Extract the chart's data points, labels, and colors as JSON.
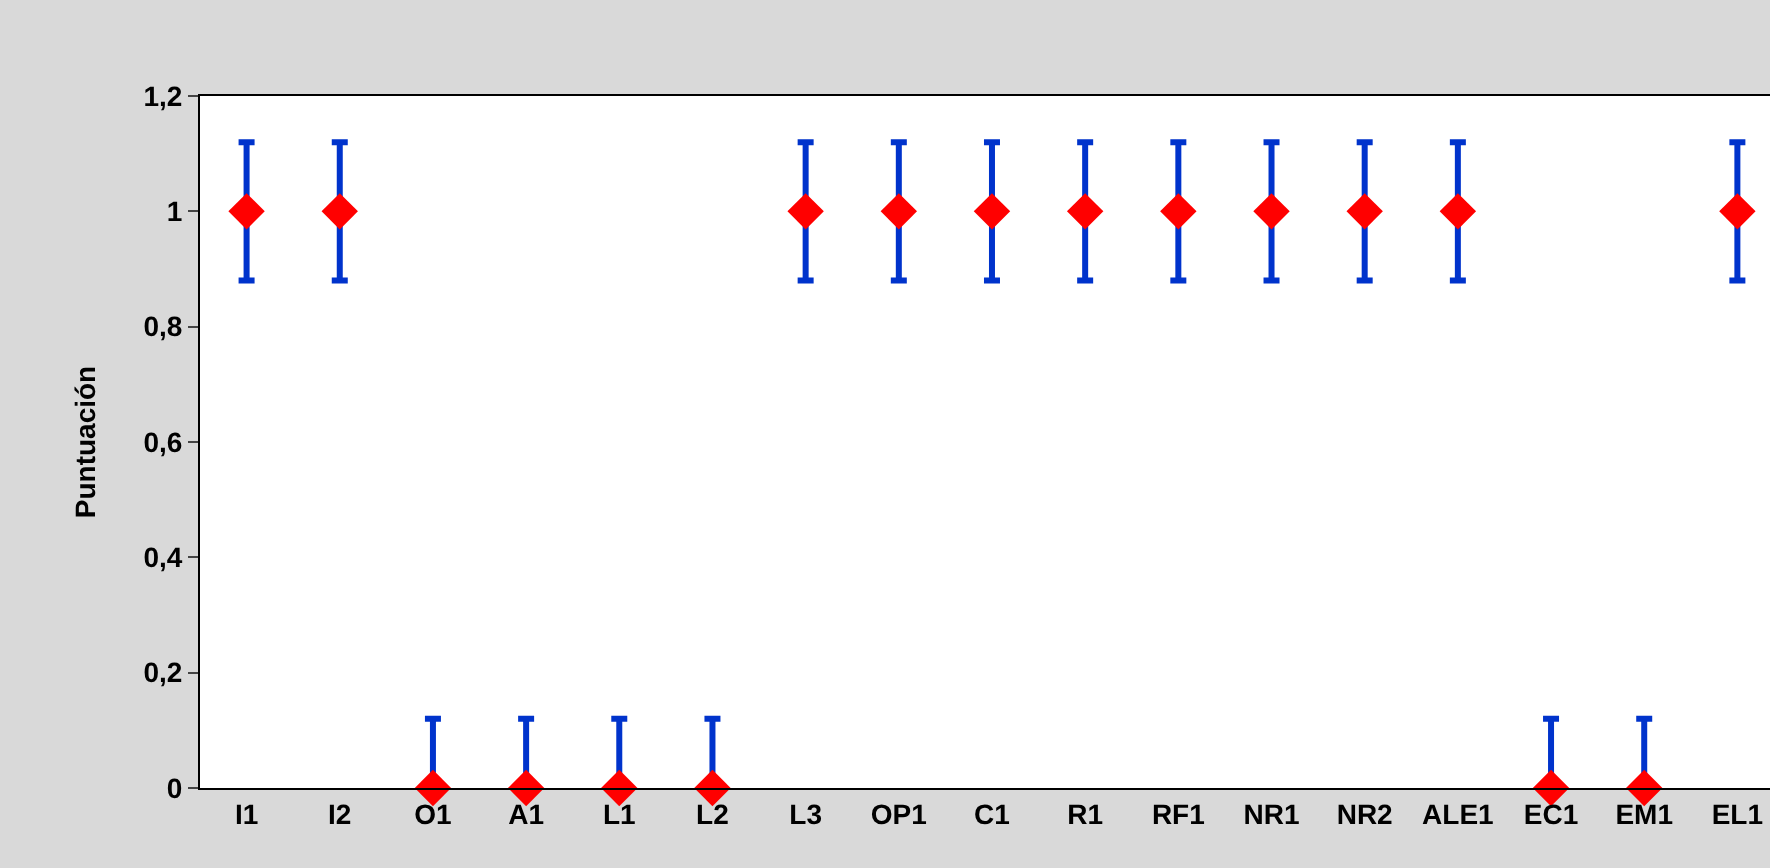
{
  "chart_data": {
    "type": "scatter",
    "ylabel": "Puntuación",
    "categories": [
      "I1",
      "I2",
      "O1",
      "A1",
      "L1",
      "L2",
      "L3",
      "OP1",
      "C1",
      "R1",
      "RF1",
      "NR1",
      "NR2",
      "ALE1",
      "EC1",
      "EM1",
      "EL1"
    ],
    "series": [
      {
        "color": "#ff0000",
        "values": [
          1,
          1,
          0,
          0,
          0,
          0,
          1,
          1,
          1,
          1,
          1,
          1,
          1,
          1,
          0,
          0,
          1
        ],
        "errors": [
          0.12,
          0.12,
          [
            0,
            0.12
          ],
          [
            0,
            0.12
          ],
          [
            0,
            0.12
          ],
          [
            0,
            0.12
          ],
          0.12,
          0.12,
          0.12,
          0.12,
          0.12,
          0.12,
          0.12,
          0.12,
          [
            0,
            0.12
          ],
          [
            0,
            0.12
          ],
          0.12
        ]
      }
    ],
    "ylim": [
      0,
      1.2
    ],
    "yticks": [
      0,
      {
        "value": 0.2,
        "label": "0,2"
      },
      {
        "value": 0.4,
        "label": "0,4"
      },
      {
        "value": 0.6,
        "label": "0,6"
      },
      {
        "value": 0.8,
        "label": "0,8"
      },
      1,
      {
        "value": 1.2,
        "label": "1,2"
      }
    ],
    "grid": false,
    "marker": "diamond"
  }
}
